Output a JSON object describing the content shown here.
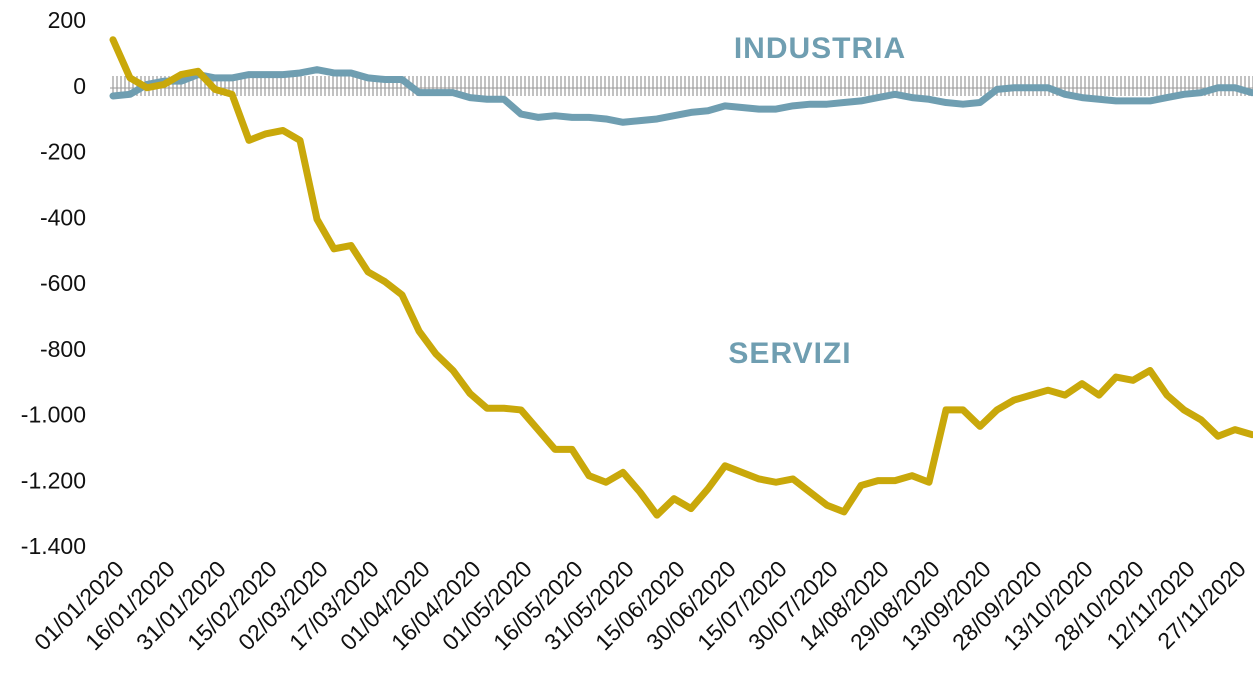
{
  "chart_data": {
    "type": "line",
    "annotations": [
      "INDUSTRIA",
      "SERVIZI"
    ],
    "categories": [
      "01/01/2020",
      null,
      null,
      "16/01/2020",
      null,
      null,
      "31/01/2020",
      null,
      null,
      "15/02/2020",
      null,
      null,
      "02/03/2020",
      null,
      null,
      "17/03/2020",
      null,
      null,
      "01/04/2020",
      null,
      null,
      "16/04/2020",
      null,
      null,
      "01/05/2020",
      null,
      null,
      "16/05/2020",
      null,
      null,
      "31/05/2020",
      null,
      null,
      "15/06/2020",
      null,
      null,
      "30/06/2020",
      null,
      null,
      "15/07/2020",
      null,
      null,
      "30/07/2020",
      null,
      null,
      "14/08/2020",
      null,
      null,
      "29/08/2020",
      null,
      null,
      "13/09/2020",
      null,
      null,
      "28/09/2020",
      null,
      null,
      "13/10/2020",
      null,
      null,
      "28/10/2020",
      null,
      null,
      "12/11/2020",
      null,
      null,
      "27/11/2020",
      null
    ],
    "series": [
      {
        "name": "INDUSTRIA",
        "color": "#6f9eb1",
        "values": [
          -25,
          -20,
          10,
          20,
          20,
          40,
          30,
          30,
          40,
          40,
          40,
          45,
          55,
          45,
          45,
          30,
          25,
          25,
          -15,
          -15,
          -15,
          -30,
          -35,
          -35,
          -80,
          -90,
          -85,
          -90,
          -90,
          -95,
          -105,
          -100,
          -95,
          -85,
          -75,
          -70,
          -55,
          -60,
          -65,
          -65,
          -55,
          -50,
          -50,
          -45,
          -40,
          -30,
          -20,
          -30,
          -35,
          -45,
          -50,
          -45,
          -5,
          0,
          0,
          0,
          -20,
          -30,
          -35,
          -40,
          -40,
          -40,
          -30,
          -20,
          -15,
          0,
          0,
          -15
        ]
      },
      {
        "name": "SERVIZI",
        "color": "#c9a80a",
        "values": [
          146,
          30,
          0,
          10,
          40,
          50,
          -5,
          -20,
          -160,
          -140,
          -130,
          -160,
          -400,
          -490,
          -480,
          -560,
          -590,
          -630,
          -740,
          -810,
          -860,
          -930,
          -975,
          -975,
          -980,
          -1040,
          -1100,
          -1100,
          -1180,
          -1200,
          -1170,
          -1230,
          -1300,
          -1250,
          -1280,
          -1220,
          -1150,
          -1170,
          -1190,
          -1200,
          -1190,
          -1230,
          -1270,
          -1290,
          -1210,
          -1195,
          -1195,
          -1180,
          -1200,
          -980,
          -980,
          -1030,
          -980,
          -950,
          -935,
          -920,
          -935,
          -900,
          -935,
          -880,
          -890,
          -860,
          -935,
          -980,
          -1010,
          -1060,
          -1040,
          -1055
        ]
      }
    ],
    "ylim": [
      -1400,
      200
    ],
    "yticks": [
      200,
      0,
      -200,
      -400,
      -600,
      -800,
      {
        "value": -1000,
        "label": "-1.000"
      },
      {
        "value": -1200,
        "label": "-1.200"
      },
      {
        "value": -1400,
        "label": "-1.400"
      }
    ],
    "grid": false
  }
}
